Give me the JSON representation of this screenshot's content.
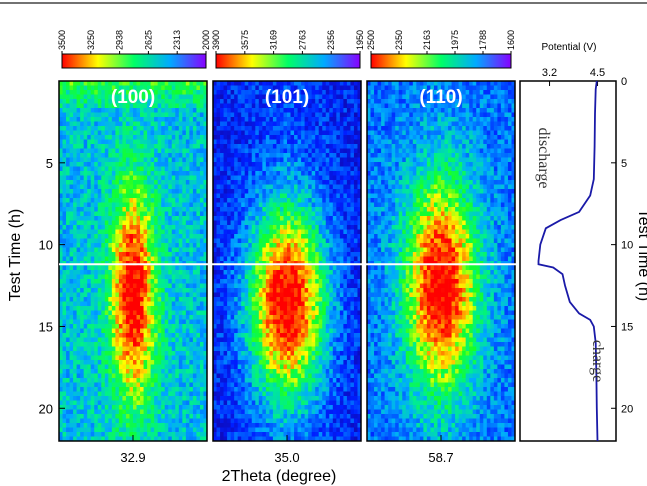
{
  "chart_data": {
    "type": "heatmap",
    "xlabel": "2Theta (degree)",
    "ylabel_left": "Test Time (h)",
    "ylabel_right": "Test Time (h)",
    "time_range": [
      0,
      22
    ],
    "time_ticks": [
      5,
      10,
      15,
      20
    ],
    "right_time_ticks": [
      0,
      5,
      10,
      15,
      20
    ],
    "divider_time_h": 11.2,
    "colors": {
      "high": "#ff0000",
      "mid": "#ffff00",
      "low_mid": "#00ff66",
      "low": "#0000ff",
      "divider": "#ffffff"
    },
    "panels": [
      {
        "label": "(100)",
        "x_tick": "32.9",
        "colorbar_ticks": [
          "3500",
          "3250",
          "2938",
          "2625",
          "2313",
          "2000"
        ],
        "intensity_range": [
          2000,
          3500
        ],
        "peak_center_fraction": 0.5,
        "peak_time_h": 13,
        "peak_width_fraction": 0.16,
        "peak_time_spread_h": 5.5,
        "background_level": 0.42
      },
      {
        "label": "(101)",
        "x_tick": "35.0",
        "colorbar_ticks": [
          "3900",
          "3575",
          "3169",
          "2763",
          "2356",
          "1950"
        ],
        "intensity_range": [
          1950,
          3900
        ],
        "peak_center_fraction": 0.5,
        "peak_time_h": 13.5,
        "peak_width_fraction": 0.28,
        "peak_time_spread_h": 5,
        "background_level": 0.22
      },
      {
        "label": "(110)",
        "x_tick": "58.7",
        "colorbar_ticks": [
          "2500",
          "2350",
          "2163",
          "1975",
          "1788",
          "1600"
        ],
        "intensity_range": [
          1600,
          2500
        ],
        "peak_center_fraction": 0.5,
        "peak_time_h": 12.5,
        "peak_width_fraction": 0.26,
        "peak_time_spread_h": 5.5,
        "background_level": 0.3
      }
    ],
    "potential": {
      "title": "Potential (V)",
      "ticks": [
        "3.2",
        "4.5"
      ],
      "range": [
        2.4,
        5.0
      ],
      "annotations": [
        "discharge",
        "charge"
      ],
      "curve": [
        [
          0.0,
          4.48
        ],
        [
          0.5,
          4.45
        ],
        [
          2,
          4.43
        ],
        [
          4,
          4.42
        ],
        [
          6,
          4.4
        ],
        [
          7,
          4.3
        ],
        [
          8,
          4.0
        ],
        [
          8.5,
          3.5
        ],
        [
          9,
          3.1
        ],
        [
          10,
          2.95
        ],
        [
          11,
          2.9
        ],
        [
          11.2,
          2.9
        ],
        [
          11.4,
          3.3
        ],
        [
          11.8,
          3.55
        ],
        [
          12.5,
          3.62
        ],
        [
          13.5,
          3.75
        ],
        [
          14.2,
          4.0
        ],
        [
          14.6,
          4.3
        ],
        [
          15,
          4.4
        ],
        [
          16,
          4.45
        ],
        [
          18,
          4.47
        ],
        [
          20,
          4.48
        ],
        [
          22,
          4.5
        ]
      ]
    }
  }
}
